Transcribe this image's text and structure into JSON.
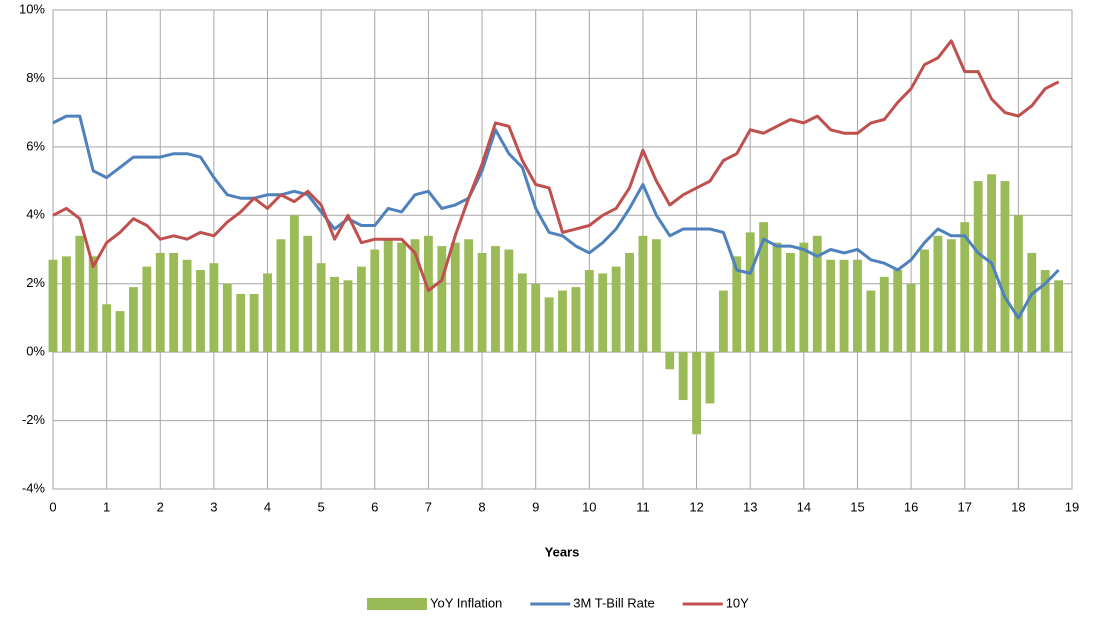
{
  "chart_data": {
    "type": "bar-line",
    "x_label": "Years",
    "xlim": [
      0,
      19
    ],
    "xticks": [
      0,
      1,
      2,
      3,
      4,
      5,
      6,
      7,
      8,
      9,
      10,
      11,
      12,
      13,
      14,
      15,
      16,
      17,
      18,
      19
    ],
    "ylim": [
      -4,
      10
    ],
    "yticks": [
      {
        "value": -4,
        "label": "-4%"
      },
      {
        "value": -2,
        "label": "-2%"
      },
      {
        "value": 0,
        "label": "0%"
      },
      {
        "value": 2,
        "label": "2%"
      },
      {
        "value": 4,
        "label": "4%"
      },
      {
        "value": 6,
        "label": "6%"
      },
      {
        "value": 8,
        "label": "8%"
      },
      {
        "value": 10,
        "label": "10%"
      }
    ],
    "grid": true,
    "legend": "bottom",
    "x": [
      0,
      0.25,
      0.5,
      0.75,
      1,
      1.25,
      1.5,
      1.75,
      2,
      2.25,
      2.5,
      2.75,
      3,
      3.25,
      3.5,
      3.75,
      4,
      4.25,
      4.5,
      4.75,
      5,
      5.25,
      5.5,
      5.75,
      6,
      6.25,
      6.5,
      6.75,
      7,
      7.25,
      7.5,
      7.75,
      8,
      8.25,
      8.5,
      8.75,
      9,
      9.25,
      9.5,
      9.75,
      10,
      10.25,
      10.5,
      10.75,
      11,
      11.25,
      11.5,
      11.75,
      12,
      12.25,
      12.5,
      12.75,
      13,
      13.25,
      13.5,
      13.75,
      14,
      14.25,
      14.5,
      14.75,
      15,
      15.25,
      15.5,
      15.75,
      16,
      16.25,
      16.5,
      16.75,
      17,
      17.25,
      17.5,
      17.75,
      18,
      18.25,
      18.5,
      18.75
    ],
    "series": [
      {
        "name": "YoY Inflation",
        "kind": "bar",
        "color": "#9bbb59",
        "values": [
          2.7,
          2.8,
          3.4,
          2.8,
          1.4,
          1.2,
          1.9,
          2.5,
          2.9,
          2.9,
          2.7,
          2.4,
          2.6,
          2.0,
          1.7,
          1.7,
          2.3,
          3.3,
          4.0,
          3.4,
          2.6,
          2.2,
          2.1,
          2.5,
          3.0,
          3.3,
          3.2,
          3.3,
          3.4,
          3.1,
          3.2,
          3.3,
          2.9,
          3.1,
          3.0,
          2.3,
          2.0,
          1.6,
          1.8,
          1.9,
          2.4,
          2.3,
          2.5,
          2.9,
          3.4,
          3.3,
          -0.5,
          -1.4,
          -2.4,
          -1.5,
          1.8,
          2.8,
          3.5,
          3.8,
          3.2,
          2.9,
          3.2,
          3.4,
          2.7,
          2.7,
          2.7,
          1.8,
          2.2,
          2.4,
          2.0,
          3.0,
          3.4,
          3.3,
          3.8,
          5.0,
          5.2,
          5.0,
          4.0,
          2.9,
          2.4,
          2.1
        ]
      },
      {
        "name": "3M T-Bill Rate",
        "kind": "line",
        "color": "#4f81bd",
        "values": [
          6.7,
          6.9,
          6.9,
          5.3,
          5.1,
          5.4,
          5.7,
          5.7,
          5.7,
          5.8,
          5.8,
          5.7,
          5.1,
          4.6,
          4.5,
          4.5,
          4.6,
          4.6,
          4.7,
          4.6,
          4.1,
          3.6,
          3.9,
          3.7,
          3.7,
          4.2,
          4.1,
          4.6,
          4.7,
          4.2,
          4.3,
          4.5,
          5.3,
          6.5,
          5.8,
          5.4,
          4.2,
          3.5,
          3.4,
          3.1,
          2.9,
          3.2,
          3.6,
          4.2,
          4.9,
          4.0,
          3.4,
          3.6,
          3.6,
          3.6,
          3.5,
          2.4,
          2.3,
          3.3,
          3.1,
          3.1,
          3.0,
          2.8,
          3.0,
          2.9,
          3.0,
          2.7,
          2.6,
          2.4,
          2.7,
          3.2,
          3.6,
          3.4,
          3.4,
          2.9,
          2.6,
          1.6,
          1.0,
          1.7,
          2.0,
          2.4
        ]
      },
      {
        "name": "10Y",
        "kind": "line",
        "color": "#c0504d",
        "values": [
          4.0,
          4.2,
          3.9,
          2.5,
          3.2,
          3.5,
          3.9,
          3.7,
          3.3,
          3.4,
          3.3,
          3.5,
          3.4,
          3.8,
          4.1,
          4.5,
          4.2,
          4.6,
          4.4,
          4.7,
          4.3,
          3.3,
          4.0,
          3.2,
          3.3,
          3.3,
          3.3,
          2.9,
          1.8,
          2.1,
          3.4,
          4.5,
          5.5,
          6.7,
          6.6,
          5.6,
          4.9,
          4.8,
          3.5,
          3.6,
          3.7,
          4.0,
          4.2,
          4.8,
          5.9,
          5.0,
          4.3,
          4.6,
          4.8,
          5.0,
          5.6,
          5.8,
          6.5,
          6.4,
          6.6,
          6.8,
          6.7,
          6.9,
          6.5,
          6.4,
          6.4,
          6.7,
          6.8,
          7.3,
          7.7,
          8.4,
          8.6,
          9.1,
          8.2,
          8.2,
          7.4,
          7.0,
          6.9,
          7.2,
          7.7,
          7.9
        ]
      }
    ]
  }
}
